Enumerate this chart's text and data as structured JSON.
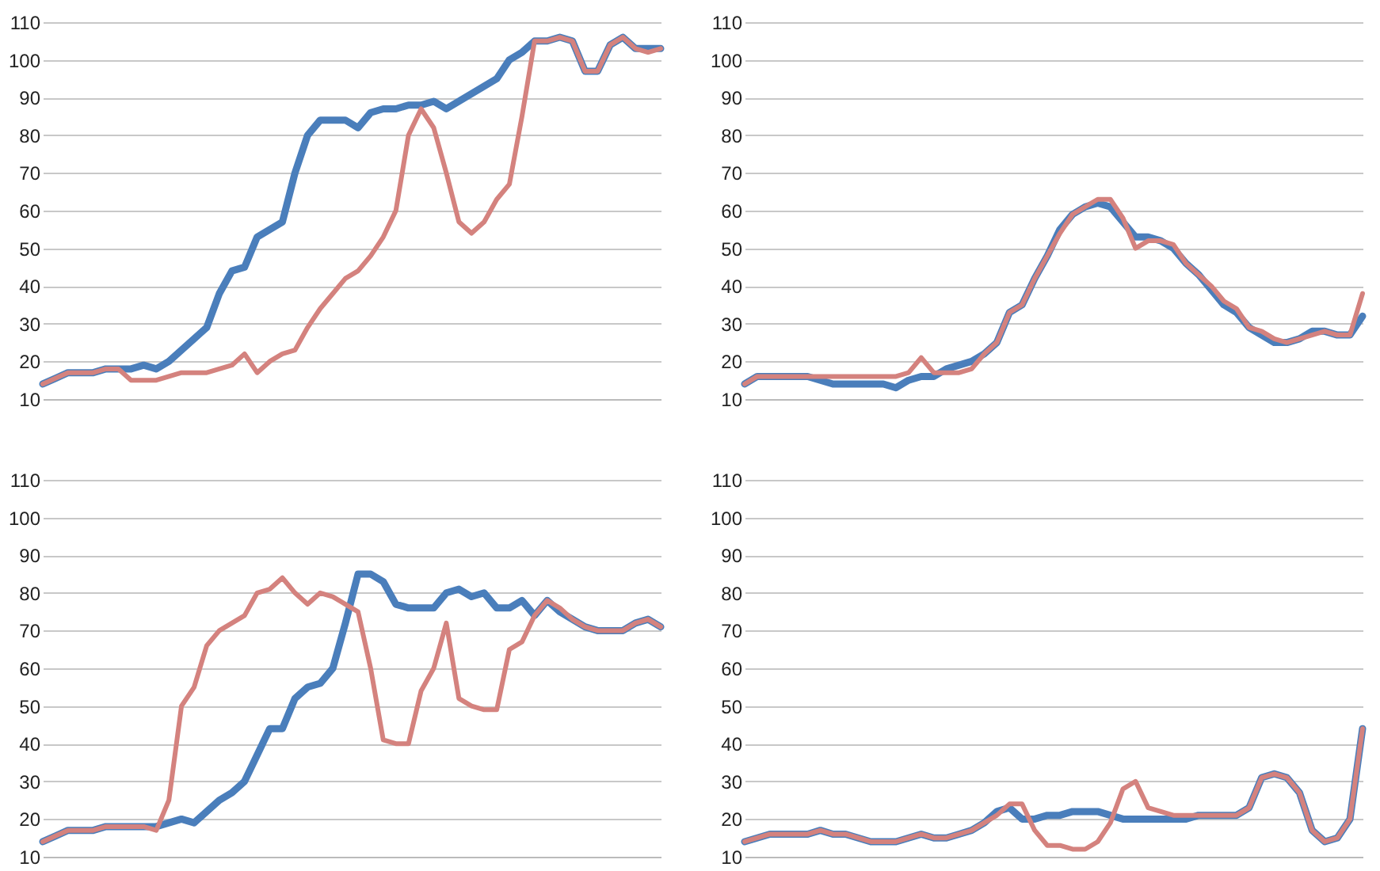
{
  "chart_data": [
    {
      "type": "line",
      "categories": [
        null,
        null,
        null,
        null,
        null,
        null,
        null,
        null,
        null,
        null,
        null,
        null,
        null,
        null,
        null,
        null,
        null,
        null,
        null,
        null,
        null,
        null,
        null,
        null,
        null,
        null,
        null,
        null,
        null,
        null,
        null,
        null,
        null,
        null,
        null,
        null,
        null,
        null,
        null,
        null,
        null,
        null,
        null,
        null,
        null,
        null,
        null,
        null,
        null,
        null
      ],
      "ylim": [
        10,
        110
      ],
      "yticks": [
        10,
        20,
        30,
        40,
        50,
        60,
        70,
        80,
        90,
        100,
        110
      ],
      "grid": "y",
      "tick_labels": "y",
      "series": [
        {
          "color": "#4a7ebb",
          "values": [
            14,
            15.5,
            17,
            17,
            17,
            18,
            18,
            18,
            19,
            18,
            20,
            23,
            26,
            29,
            38,
            44,
            45,
            53,
            55,
            57,
            70,
            80,
            84,
            84,
            84,
            82,
            86,
            87,
            87,
            88,
            88,
            89,
            87,
            89,
            91,
            93,
            95,
            100,
            102,
            105,
            105,
            106,
            105,
            97,
            97,
            104,
            106,
            103,
            103,
            103
          ]
        },
        {
          "color": "#d4827e",
          "values": [
            14,
            15.5,
            17,
            17,
            17,
            18,
            18,
            15,
            15,
            15,
            16,
            17,
            17,
            17,
            18,
            19,
            22,
            17,
            20,
            22,
            23,
            29,
            34,
            38,
            42,
            44,
            48,
            53,
            60,
            80,
            87,
            82,
            70,
            57,
            54,
            57,
            63,
            67,
            85,
            105,
            105,
            106,
            105,
            97,
            97,
            104,
            106,
            103,
            102,
            103
          ]
        }
      ]
    },
    {
      "type": "line",
      "categories": [
        null,
        null,
        null,
        null,
        null,
        null,
        null,
        null,
        null,
        null,
        null,
        null,
        null,
        null,
        null,
        null,
        null,
        null,
        null,
        null,
        null,
        null,
        null,
        null,
        null,
        null,
        null,
        null,
        null,
        null,
        null,
        null,
        null,
        null,
        null,
        null,
        null,
        null,
        null,
        null,
        null,
        null,
        null,
        null,
        null,
        null,
        null,
        null,
        null,
        null
      ],
      "ylim": [
        10,
        110
      ],
      "yticks": [
        10,
        20,
        30,
        40,
        50,
        60,
        70,
        80,
        90,
        100,
        110
      ],
      "grid": "y",
      "tick_labels": "y",
      "series": [
        {
          "color": "#4a7ebb",
          "values": [
            14,
            16,
            16,
            16,
            16,
            16,
            15,
            14,
            14,
            14,
            14,
            14,
            13,
            15,
            16,
            16,
            18,
            19,
            20,
            22,
            25,
            33,
            35,
            42,
            48,
            55,
            59,
            61,
            62,
            61,
            57,
            53,
            53,
            52,
            50,
            46,
            43,
            39,
            35,
            33,
            29,
            27,
            25,
            25,
            26,
            28,
            28,
            27,
            27,
            32
          ]
        },
        {
          "color": "#d4827e",
          "values": [
            14,
            16,
            16,
            16,
            16,
            16,
            16,
            16,
            16,
            16,
            16,
            16,
            16,
            17,
            21,
            17,
            17,
            17,
            18,
            22,
            25,
            33,
            35,
            42,
            48,
            54,
            59,
            61,
            63,
            63,
            58,
            50,
            52,
            52,
            51,
            46,
            43,
            40,
            36,
            34,
            29,
            28,
            26,
            25,
            26,
            27,
            28,
            27,
            27,
            38
          ]
        }
      ]
    },
    {
      "type": "line",
      "categories": [
        null,
        null,
        null,
        null,
        null,
        null,
        null,
        null,
        null,
        null,
        null,
        null,
        null,
        null,
        null,
        null,
        null,
        null,
        null,
        null,
        null,
        null,
        null,
        null,
        null,
        null,
        null,
        null,
        null,
        null,
        null,
        null,
        null,
        null,
        null,
        null,
        null,
        null,
        null,
        null,
        null,
        null,
        null,
        null,
        null,
        null,
        null,
        null,
        null,
        null
      ],
      "ylim": [
        10,
        110
      ],
      "yticks": [
        10,
        20,
        30,
        40,
        50,
        60,
        70,
        80,
        90,
        100,
        110
      ],
      "grid": "y",
      "tick_labels": "y",
      "series": [
        {
          "color": "#4a7ebb",
          "values": [
            14,
            15.5,
            17,
            17,
            17,
            18,
            18,
            18,
            18,
            18,
            19,
            20,
            19,
            22,
            25,
            27,
            30,
            37,
            44,
            44,
            52,
            55,
            56,
            60,
            72,
            85,
            85,
            83,
            77,
            76,
            76,
            76,
            80,
            81,
            79,
            80,
            76,
            76,
            78,
            74,
            78,
            75,
            73,
            71,
            70,
            70,
            70,
            72,
            73,
            71
          ]
        },
        {
          "color": "#d4827e",
          "values": [
            14,
            15.5,
            17,
            17,
            17,
            18,
            18,
            18,
            18,
            17,
            25,
            50,
            55,
            66,
            70,
            72,
            74,
            80,
            81,
            84,
            80,
            77,
            80,
            79,
            77,
            75,
            60,
            41,
            40,
            40,
            54,
            60,
            72,
            52,
            50,
            49,
            49,
            65,
            67,
            74,
            78,
            76,
            73,
            71,
            70,
            70,
            70,
            72,
            73,
            71
          ]
        }
      ]
    },
    {
      "type": "line",
      "categories": [
        null,
        null,
        null,
        null,
        null,
        null,
        null,
        null,
        null,
        null,
        null,
        null,
        null,
        null,
        null,
        null,
        null,
        null,
        null,
        null,
        null,
        null,
        null,
        null,
        null,
        null,
        null,
        null,
        null,
        null,
        null,
        null,
        null,
        null,
        null,
        null,
        null,
        null,
        null,
        null,
        null,
        null,
        null,
        null,
        null,
        null,
        null,
        null,
        null,
        null
      ],
      "ylim": [
        10,
        110
      ],
      "yticks": [
        10,
        20,
        30,
        40,
        50,
        60,
        70,
        80,
        90,
        100,
        110
      ],
      "grid": "y",
      "tick_labels": "y",
      "series": [
        {
          "color": "#4a7ebb",
          "values": [
            14,
            15,
            16,
            16,
            16,
            16,
            17,
            16,
            16,
            15,
            14,
            14,
            14,
            15,
            16,
            15,
            15,
            16,
            17,
            19,
            22,
            23,
            20,
            20,
            21,
            21,
            22,
            22,
            22,
            21,
            20,
            20,
            20,
            20,
            20,
            20,
            21,
            21,
            21,
            21,
            23,
            31,
            32,
            31,
            27,
            17,
            14,
            15,
            20,
            44
          ]
        },
        {
          "color": "#d4827e",
          "values": [
            14,
            15,
            16,
            16,
            16,
            16,
            17,
            16,
            16,
            15,
            14,
            14,
            14,
            15,
            16,
            15,
            15,
            16,
            17,
            19,
            21,
            24,
            24,
            17,
            13,
            13,
            12,
            12,
            14,
            19,
            28,
            30,
            23,
            22,
            21,
            21,
            21,
            21,
            21,
            21,
            23,
            31,
            32,
            31,
            27,
            17,
            14,
            15,
            20,
            44
          ]
        }
      ]
    }
  ]
}
